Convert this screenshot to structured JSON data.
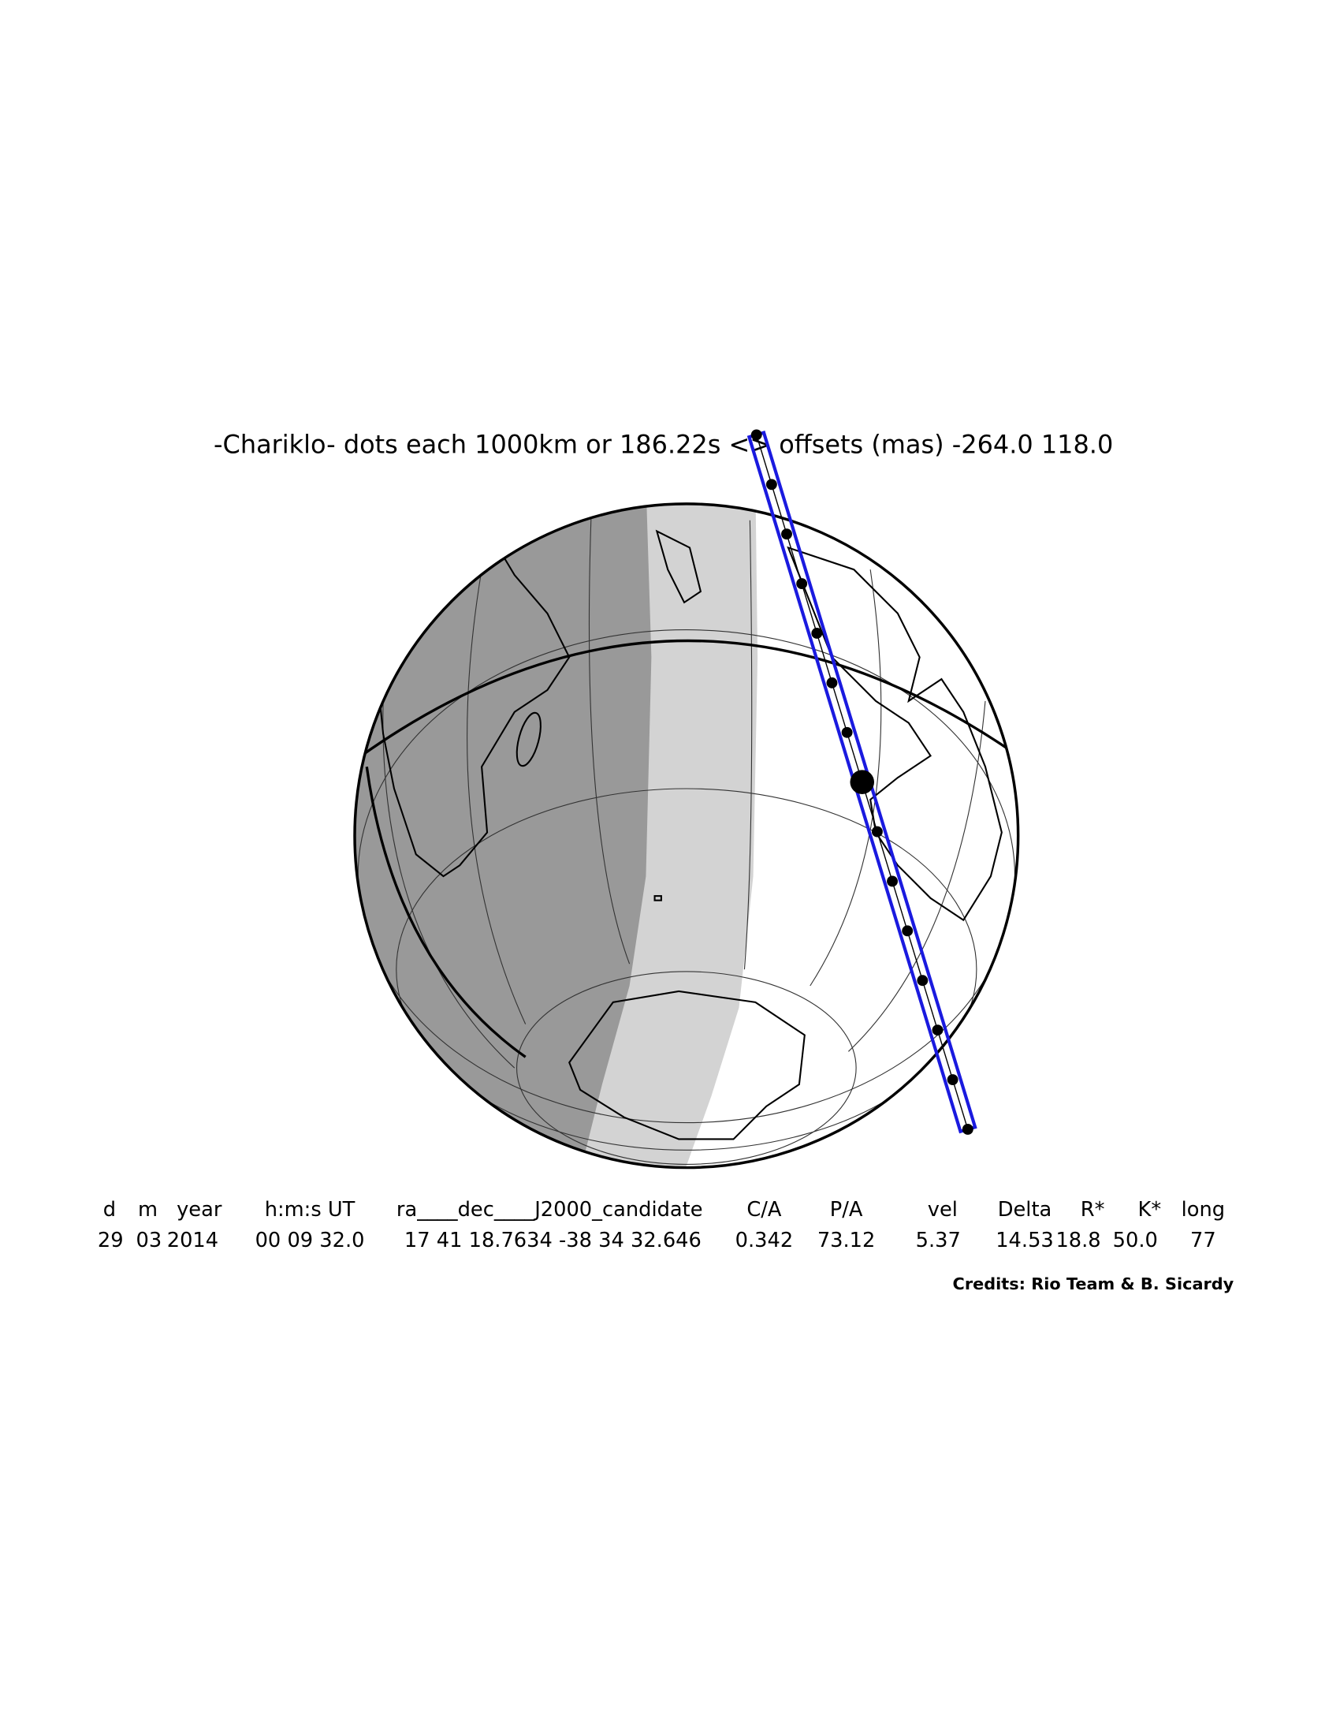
{
  "title": "-Chariklo- dots each 1000km or 186.22s <> offsets (mas) -264.0   118.0",
  "table": {
    "header": [
      "d",
      "m",
      "year",
      "h:m:s UT",
      "ra____dec____J2000_candidate",
      "C/A",
      "P/A",
      "vel",
      "Delta",
      "R*",
      "K*",
      "long"
    ],
    "rows": [
      [
        "29",
        "03",
        "2014",
        "00 09 32.0",
        "17 41 18.7634 -38 34 32.646",
        "0.342",
        "73.12",
        "5.37",
        "14.53",
        "18.8",
        "50.0",
        "77"
      ]
    ]
  },
  "credits": "Credits: Rio Team & B. Sicardy"
}
